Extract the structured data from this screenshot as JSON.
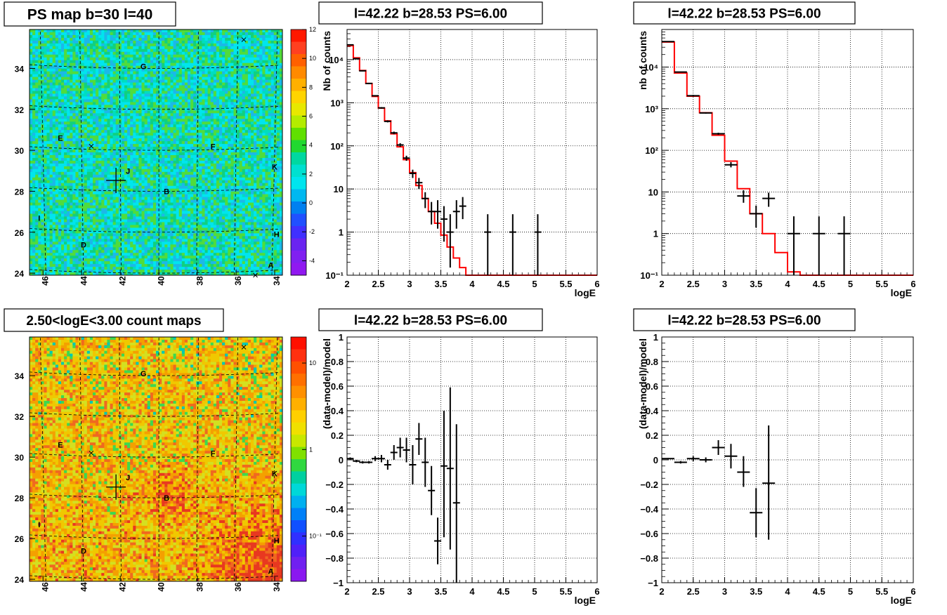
{
  "colors": {
    "model_line": "#ff0000",
    "data_marker": "#000000",
    "grid": "#000000",
    "background": "#ffffff",
    "map_base_top": "#00e5ee",
    "map_base_bottom": "#f0b400"
  },
  "chart_data": [
    {
      "id": "ps_map",
      "type": "heatmap",
      "title": "PS map b=30 l=40",
      "x_tick_labels": [
        "46",
        "44",
        "42",
        "40",
        "38",
        "36",
        "34"
      ],
      "y_tick_labels": [
        "24",
        "26",
        "28",
        "30",
        "32",
        "34"
      ],
      "xlim": [
        46.7,
        33.6
      ],
      "ylim": [
        23.9,
        35.9
      ],
      "colorbar": {
        "labels": [
          "-4",
          "-2",
          "0",
          "2",
          "4",
          "6",
          "8",
          "10",
          "12"
        ],
        "range": [
          -5,
          12
        ],
        "scale": "linear"
      },
      "source_labels": [
        {
          "text": "G",
          "l": 40.8,
          "b": 34.1
        },
        {
          "text": "E",
          "l": 45.1,
          "b": 30.6
        },
        {
          "text": "F",
          "l": 37.2,
          "b": 30.2
        },
        {
          "text": "J",
          "l": 41.6,
          "b": 29.0
        },
        {
          "text": "K",
          "l": 34.0,
          "b": 29.2
        },
        {
          "text": "B",
          "l": 39.6,
          "b": 28.0
        },
        {
          "text": "I",
          "l": 46.2,
          "b": 26.7
        },
        {
          "text": "H",
          "l": 33.9,
          "b": 25.9
        },
        {
          "text": "D",
          "l": 43.9,
          "b": 25.4
        },
        {
          "text": "A",
          "l": 34.2,
          "b": 24.4
        }
      ],
      "crosses": [
        {
          "l": 35.6,
          "b": 35.4
        },
        {
          "l": 43.5,
          "b": 30.2
        },
        {
          "l": 35.0,
          "b": 23.9
        }
      ],
      "target": {
        "l": 42.22,
        "b": 28.53
      }
    },
    {
      "id": "spectrum_1",
      "type": "line",
      "title": "l=42.22 b=28.53 PS=6.00",
      "xlabel": "logE",
      "ylabel": "Nb of counts",
      "xlim": [
        2,
        6
      ],
      "ylim": [
        0.1,
        50000
      ],
      "yscale": "log",
      "grid": true,
      "x_tick_labels": [
        "2",
        "2.5",
        "3",
        "3.5",
        "4",
        "4.5",
        "5",
        "5.5",
        "6"
      ],
      "y_tick_labels": [
        "10⁻¹",
        "1",
        "10",
        "10²",
        "10³",
        "10⁴"
      ],
      "model_edges": [
        2,
        2.1,
        2.2,
        2.3,
        2.4,
        2.5,
        2.6,
        2.7,
        2.8,
        2.9,
        3,
        3.1,
        3.2,
        3.3,
        3.4,
        3.5,
        3.6,
        3.7,
        3.8,
        3.9,
        4,
        4.1,
        4.2,
        6
      ],
      "model_values": [
        21000,
        11000,
        5600,
        2800,
        1400,
        750,
        380,
        190,
        95,
        48,
        24,
        12,
        6,
        3,
        1.6,
        0.85,
        0.45,
        0.25,
        0.15,
        0.1,
        0.1,
        0.1,
        0.1
      ],
      "data_points": [
        {
          "x": 2.05,
          "y": 22000,
          "lo": 21500,
          "hi": 22500
        },
        {
          "x": 2.15,
          "y": 10500,
          "lo": 10200,
          "hi": 10800
        },
        {
          "x": 2.25,
          "y": 5500,
          "lo": 5350,
          "hi": 5650
        },
        {
          "x": 2.35,
          "y": 2800,
          "lo": 2700,
          "hi": 2900
        },
        {
          "x": 2.45,
          "y": 1450,
          "lo": 1400,
          "hi": 1500
        },
        {
          "x": 2.55,
          "y": 760,
          "lo": 730,
          "hi": 790
        },
        {
          "x": 2.65,
          "y": 370,
          "lo": 350,
          "hi": 390
        },
        {
          "x": 2.75,
          "y": 200,
          "lo": 186,
          "hi": 214
        },
        {
          "x": 2.85,
          "y": 105,
          "lo": 95,
          "hi": 115
        },
        {
          "x": 2.95,
          "y": 52,
          "lo": 45,
          "hi": 59
        },
        {
          "x": 3.05,
          "y": 23,
          "lo": 18,
          "hi": 28
        },
        {
          "x": 3.15,
          "y": 14,
          "lo": 10,
          "hi": 18
        },
        {
          "x": 3.25,
          "y": 6,
          "lo": 3.6,
          "hi": 8.4
        },
        {
          "x": 3.35,
          "y": 3,
          "lo": 1.5,
          "hi": 5
        },
        {
          "x": 3.45,
          "y": 3,
          "lo": 1.2,
          "hi": 5.5
        },
        {
          "x": 3.55,
          "y": 2,
          "lo": 0.6,
          "hi": 4
        },
        {
          "x": 3.65,
          "y": 1,
          "lo": 0.15,
          "hi": 2.6
        },
        {
          "x": 3.75,
          "y": 3,
          "lo": 1.2,
          "hi": 5.5
        },
        {
          "x": 3.85,
          "y": 4,
          "lo": 2,
          "hi": 6.5
        },
        {
          "x": 4.25,
          "y": 1,
          "lo": 0.1,
          "hi": 2.6
        },
        {
          "x": 4.65,
          "y": 1,
          "lo": 0.1,
          "hi": 2.6
        },
        {
          "x": 5.05,
          "y": 1,
          "lo": 0.1,
          "hi": 2.6
        }
      ]
    },
    {
      "id": "spectrum_2",
      "type": "line",
      "title": "l=42.22 b=28.53 PS=6.00",
      "xlabel": "logE",
      "ylabel": "nb of counts",
      "xlim": [
        2,
        6
      ],
      "ylim": [
        0.1,
        80000
      ],
      "yscale": "log",
      "grid": true,
      "x_tick_labels": [
        "2",
        "2.5",
        "3",
        "3.5",
        "4",
        "4.5",
        "5",
        "5.5",
        "6"
      ],
      "y_tick_labels": [
        "10⁻¹",
        "1",
        "10",
        "10²",
        "10³",
        "10⁴"
      ],
      "model_edges": [
        2,
        2.2,
        2.4,
        2.6,
        2.8,
        3,
        3.2,
        3.4,
        3.6,
        3.8,
        4,
        4.2,
        4.4,
        6
      ],
      "model_values": [
        40000,
        7200,
        2000,
        800,
        230,
        55,
        12,
        3,
        1,
        0.35,
        0.12,
        0.1,
        0.1
      ],
      "data_points": [
        {
          "x": 2.1,
          "y": 41000,
          "lo": 40600,
          "hi": 41400
        },
        {
          "x": 2.3,
          "y": 7600,
          "lo": 7430,
          "hi": 7770
        },
        {
          "x": 2.5,
          "y": 2050,
          "lo": 1960,
          "hi": 2140
        },
        {
          "x": 2.7,
          "y": 790,
          "lo": 760,
          "hi": 820
        },
        {
          "x": 2.9,
          "y": 250,
          "lo": 235,
          "hi": 265
        },
        {
          "x": 3.1,
          "y": 45,
          "lo": 39,
          "hi": 52
        },
        {
          "x": 3.3,
          "y": 8,
          "lo": 5.5,
          "hi": 11
        },
        {
          "x": 3.5,
          "y": 3,
          "lo": 1.4,
          "hi": 4.7
        },
        {
          "x": 3.7,
          "y": 7,
          "lo": 4.4,
          "hi": 9.6
        },
        {
          "x": 4.1,
          "y": 1,
          "lo": 0.1,
          "hi": 2.6
        },
        {
          "x": 4.5,
          "y": 1,
          "lo": 0.1,
          "hi": 2.6
        },
        {
          "x": 4.9,
          "y": 1,
          "lo": 0.1,
          "hi": 2.6
        }
      ]
    },
    {
      "id": "count_map",
      "type": "heatmap",
      "title": "2.50<logE<3.00 count maps",
      "x_tick_labels": [
        "46",
        "44",
        "42",
        "40",
        "38",
        "36",
        "34"
      ],
      "y_tick_labels": [
        "24",
        "26",
        "28",
        "30",
        "32",
        "34"
      ],
      "xlim": [
        46.7,
        33.6
      ],
      "ylim": [
        23.9,
        35.9
      ],
      "colorbar": {
        "labels": [
          "10⁻¹",
          "1",
          "10"
        ],
        "range": [
          0.03,
          20
        ],
        "scale": "log"
      },
      "source_labels": [
        {
          "text": "G",
          "l": 40.8,
          "b": 34.1
        },
        {
          "text": "E",
          "l": 45.1,
          "b": 30.6
        },
        {
          "text": "F",
          "l": 37.2,
          "b": 30.2
        },
        {
          "text": "J",
          "l": 41.6,
          "b": 29.0
        },
        {
          "text": "K",
          "l": 34.0,
          "b": 29.2
        },
        {
          "text": "B",
          "l": 39.6,
          "b": 28.0
        },
        {
          "text": "I",
          "l": 46.2,
          "b": 26.7
        },
        {
          "text": "H",
          "l": 33.9,
          "b": 25.9
        },
        {
          "text": "D",
          "l": 43.9,
          "b": 25.4
        },
        {
          "text": "A",
          "l": 34.2,
          "b": 24.4
        }
      ],
      "crosses": [
        {
          "l": 35.6,
          "b": 35.4
        },
        {
          "l": 43.5,
          "b": 30.2
        }
      ],
      "target": {
        "l": 42.22,
        "b": 28.53
      }
    },
    {
      "id": "residual_1",
      "type": "scatter",
      "title": "l=42.22 b=28.53 PS=6.00",
      "xlabel": "logE",
      "ylabel": "(data-model)/model",
      "xlim": [
        2,
        6
      ],
      "ylim": [
        -1,
        1
      ],
      "grid": true,
      "x_tick_labels": [
        "2",
        "2.5",
        "3",
        "3.5",
        "4",
        "4.5",
        "5",
        "5.5",
        "6"
      ],
      "y_tick_labels": [
        "−1",
        "−0.8",
        "−0.6",
        "−0.4",
        "−0.2",
        "0",
        "0.2",
        "0.4",
        "0.6",
        "0.8",
        "1"
      ],
      "data_points": [
        {
          "x": 2.05,
          "y": 0.01,
          "lo": 0.0,
          "hi": 0.02
        },
        {
          "x": 2.15,
          "y": -0.01,
          "lo": -0.02,
          "hi": 0.0
        },
        {
          "x": 2.25,
          "y": -0.02,
          "lo": -0.03,
          "hi": -0.01
        },
        {
          "x": 2.35,
          "y": -0.02,
          "lo": -0.03,
          "hi": -0.01
        },
        {
          "x": 2.45,
          "y": 0.01,
          "lo": -0.01,
          "hi": 0.03
        },
        {
          "x": 2.55,
          "y": 0.01,
          "lo": -0.02,
          "hi": 0.04
        },
        {
          "x": 2.65,
          "y": -0.04,
          "lo": -0.08,
          "hi": 0.0
        },
        {
          "x": 2.75,
          "y": 0.06,
          "lo": 0.0,
          "hi": 0.12
        },
        {
          "x": 2.85,
          "y": 0.1,
          "lo": 0.02,
          "hi": 0.18
        },
        {
          "x": 2.95,
          "y": 0.08,
          "lo": -0.02,
          "hi": 0.18
        },
        {
          "x": 3.05,
          "y": -0.04,
          "lo": -0.2,
          "hi": 0.12
        },
        {
          "x": 3.15,
          "y": 0.17,
          "lo": 0.04,
          "hi": 0.3
        },
        {
          "x": 3.25,
          "y": -0.02,
          "lo": -0.22,
          "hi": 0.18
        },
        {
          "x": 3.35,
          "y": -0.25,
          "lo": -0.45,
          "hi": -0.05
        },
        {
          "x": 3.45,
          "y": -0.66,
          "lo": -0.85,
          "hi": -0.47
        },
        {
          "x": 3.55,
          "y": -0.05,
          "lo": -0.63,
          "hi": 0.4
        },
        {
          "x": 3.65,
          "y": -0.07,
          "lo": -0.73,
          "hi": 0.59
        },
        {
          "x": 3.75,
          "y": -0.35,
          "lo": -1.0,
          "hi": 0.29
        }
      ]
    },
    {
      "id": "residual_2",
      "type": "scatter",
      "title": "l=42.22 b=28.53 PS=6.00",
      "xlabel": "logE",
      "ylabel": "(data-model)/model",
      "xlim": [
        2,
        6
      ],
      "ylim": [
        -1,
        1
      ],
      "grid": true,
      "x_tick_labels": [
        "2",
        "2.5",
        "3",
        "3.5",
        "4",
        "4.5",
        "5",
        "5.5",
        "6"
      ],
      "y_tick_labels": [
        "−1",
        "−0.8",
        "−0.6",
        "−0.4",
        "−0.2",
        "0",
        "0.2",
        "0.4",
        "0.6",
        "0.8",
        "1"
      ],
      "data_points": [
        {
          "x": 2.1,
          "y": 0.01,
          "lo": 0.005,
          "hi": 0.015
        },
        {
          "x": 2.3,
          "y": -0.02,
          "lo": -0.03,
          "hi": -0.01
        },
        {
          "x": 2.5,
          "y": 0.01,
          "lo": -0.01,
          "hi": 0.03
        },
        {
          "x": 2.7,
          "y": 0.0,
          "lo": -0.02,
          "hi": 0.02
        },
        {
          "x": 2.9,
          "y": 0.1,
          "lo": 0.04,
          "hi": 0.16
        },
        {
          "x": 3.1,
          "y": 0.03,
          "lo": -0.07,
          "hi": 0.13
        },
        {
          "x": 3.3,
          "y": -0.1,
          "lo": -0.22,
          "hi": 0.03
        },
        {
          "x": 3.5,
          "y": -0.43,
          "lo": -0.63,
          "hi": -0.23
        },
        {
          "x": 3.7,
          "y": -0.19,
          "lo": -0.65,
          "hi": 0.28
        }
      ]
    }
  ]
}
